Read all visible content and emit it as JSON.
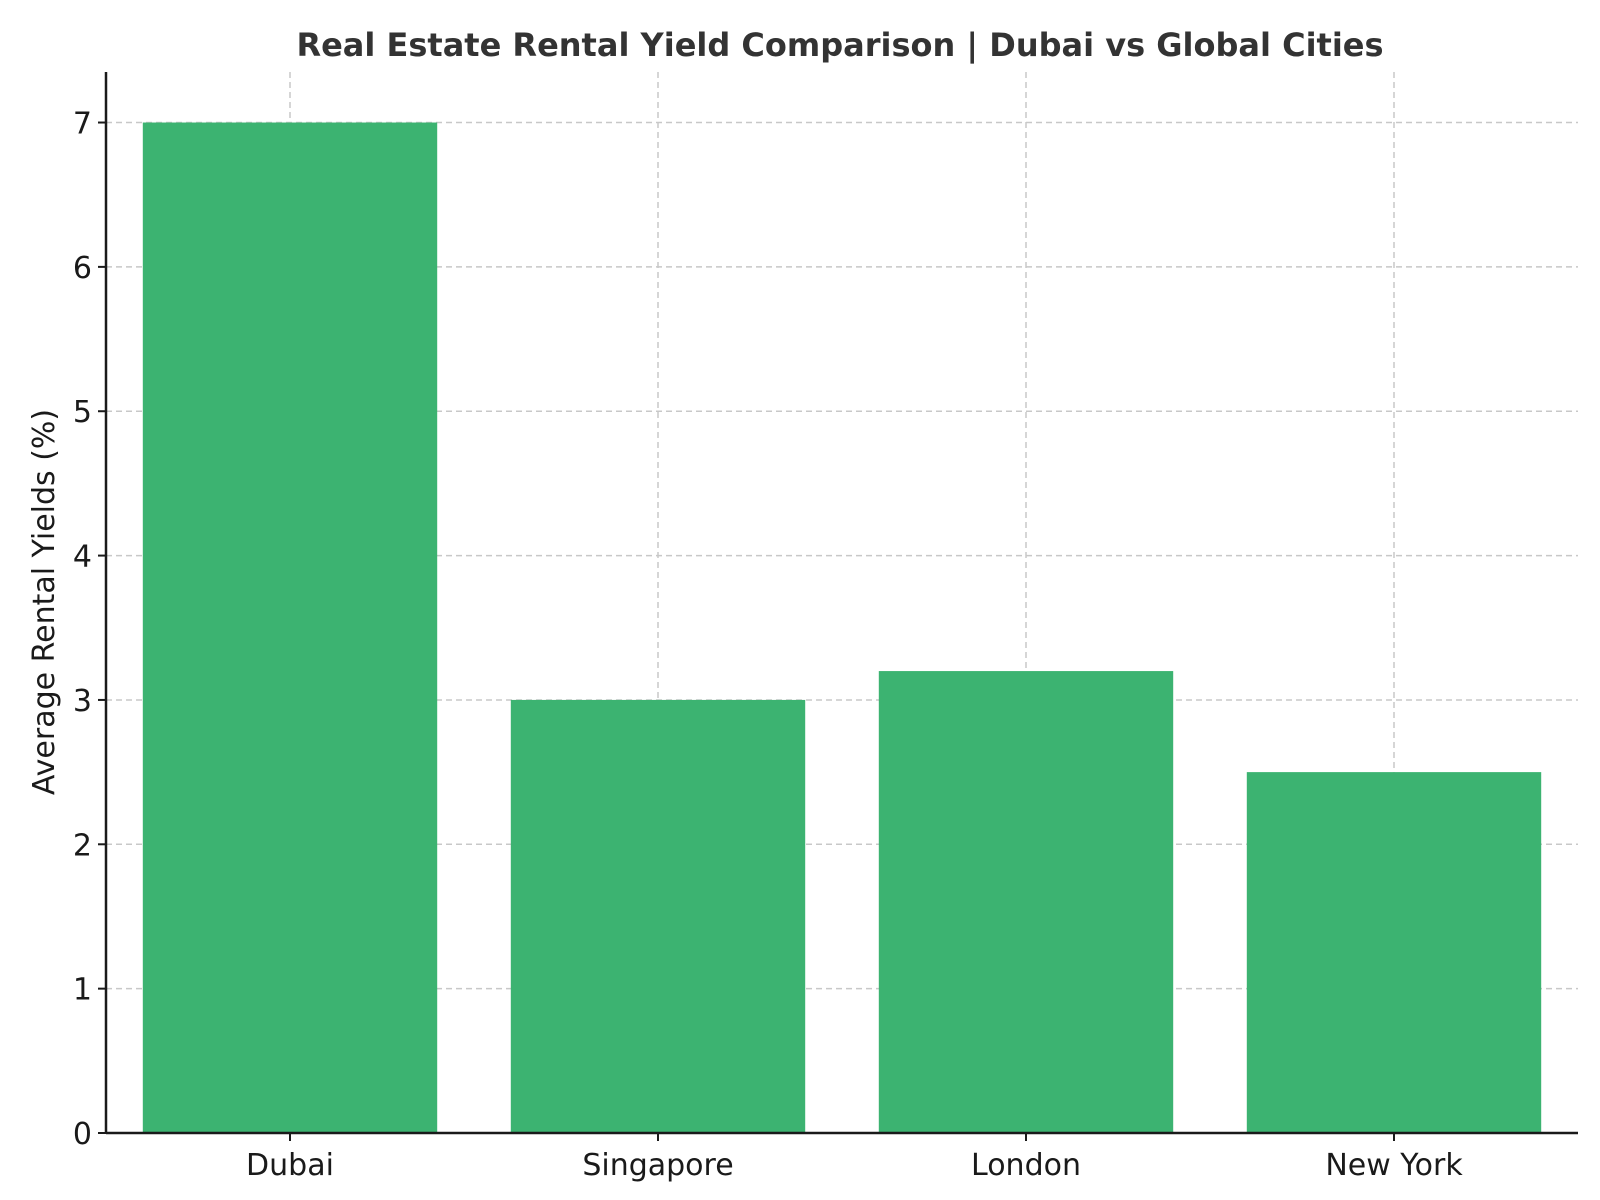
{
  "chart_data": {
    "type": "bar",
    "title": "Real Estate Rental Yield Comparison | Dubai vs Global Cities",
    "xlabel": "",
    "ylabel": "Average Rental Yields (%)",
    "categories": [
      "Dubai",
      "Singapore",
      "London",
      "New York"
    ],
    "values": [
      7.0,
      3.0,
      3.2,
      2.5
    ],
    "ylim": [
      0,
      7.35
    ],
    "yticks": [
      0,
      1,
      2,
      3,
      4,
      5,
      6,
      7
    ],
    "grid": true,
    "bar_color": "#3cb371"
  }
}
